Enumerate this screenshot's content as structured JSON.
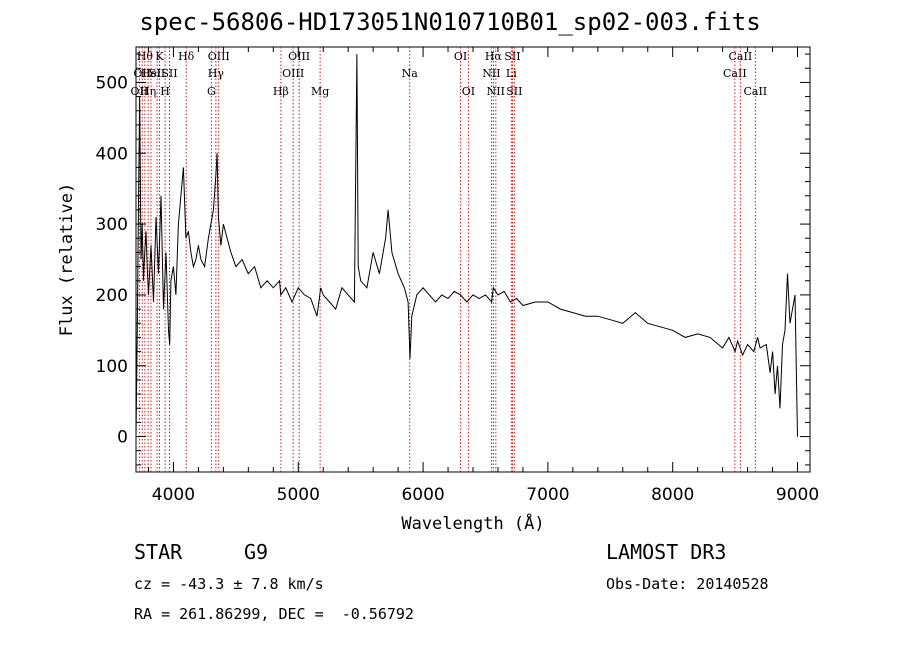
{
  "title": "spec-56806-HD173051N010710B01_sp02-003.fits",
  "info": {
    "class": "STAR",
    "subclass": "G9",
    "survey": "LAMOST DR3",
    "cz": "cz = -43.3 ± 7.8 km/s",
    "obs_date": "Obs-Date: 20140528",
    "radec": "RA = 261.86299, DEC =  -0.56792"
  },
  "chart_data": {
    "type": "line",
    "title": "spec-56806-HD173051N010710B01_sp02-003.fits",
    "xlabel": "Wavelength (Å)",
    "ylabel": "Flux (relative)",
    "xlim": [
      3700,
      9100
    ],
    "ylim": [
      -50,
      550
    ],
    "xticks": [
      4000,
      5000,
      6000,
      7000,
      8000,
      9000
    ],
    "yticks": [
      0,
      100,
      200,
      300,
      400,
      500
    ],
    "series": [
      {
        "name": "flux",
        "x": [
          3700,
          3710,
          3720,
          3730,
          3740,
          3750,
          3760,
          3770,
          3780,
          3790,
          3800,
          3820,
          3840,
          3860,
          3880,
          3900,
          3920,
          3940,
          3960,
          3970,
          3980,
          4000,
          4020,
          4040,
          4060,
          4080,
          4100,
          4120,
          4140,
          4160,
          4180,
          4200,
          4220,
          4250,
          4280,
          4300,
          4320,
          4340,
          4350,
          4360,
          4380,
          4400,
          4430,
          4460,
          4500,
          4550,
          4600,
          4650,
          4700,
          4750,
          4800,
          4850,
          4860,
          4900,
          4950,
          5000,
          5050,
          5100,
          5150,
          5180,
          5200,
          5250,
          5300,
          5350,
          5400,
          5450,
          5470,
          5480,
          5500,
          5550,
          5600,
          5650,
          5700,
          5720,
          5750,
          5800,
          5850,
          5880,
          5895,
          5910,
          5950,
          6000,
          6050,
          6100,
          6150,
          6200,
          6250,
          6300,
          6350,
          6400,
          6450,
          6500,
          6550,
          6563,
          6600,
          6650,
          6700,
          6750,
          6800,
          6900,
          7000,
          7100,
          7200,
          7300,
          7400,
          7500,
          7600,
          7700,
          7800,
          7900,
          8000,
          8100,
          8200,
          8300,
          8400,
          8450,
          8500,
          8520,
          8560,
          8600,
          8650,
          8680,
          8700,
          8750,
          8780,
          8800,
          8820,
          8840,
          8860,
          8880,
          8900,
          8920,
          8940,
          8960,
          8980,
          9000
        ],
        "y": [
          0,
          140,
          330,
          480,
          250,
          300,
          220,
          260,
          290,
          240,
          200,
          270,
          190,
          310,
          230,
          340,
          180,
          260,
          150,
          130,
          220,
          240,
          200,
          300,
          340,
          380,
          280,
          290,
          260,
          240,
          250,
          270,
          250,
          240,
          280,
          300,
          320,
          370,
          400,
          310,
          270,
          300,
          280,
          260,
          240,
          250,
          230,
          240,
          210,
          220,
          210,
          220,
          200,
          210,
          190,
          210,
          200,
          195,
          170,
          210,
          200,
          190,
          180,
          210,
          200,
          190,
          540,
          240,
          220,
          210,
          260,
          230,
          280,
          320,
          260,
          230,
          210,
          190,
          110,
          170,
          200,
          210,
          200,
          190,
          200,
          195,
          205,
          200,
          190,
          200,
          195,
          200,
          190,
          210,
          200,
          205,
          190,
          195,
          185,
          190,
          190,
          180,
          175,
          170,
          170,
          165,
          160,
          175,
          160,
          155,
          150,
          140,
          145,
          140,
          125,
          140,
          120,
          135,
          115,
          130,
          120,
          140,
          125,
          130,
          90,
          120,
          60,
          100,
          40,
          130,
          150,
          230,
          160,
          180,
          200,
          0
        ]
      }
    ],
    "lines": [
      {
        "wl": 3727,
        "labels": [
          "OII"
        ],
        "row": 3
      },
      {
        "wl": 3750,
        "labels": [
          "OII"
        ],
        "row": 2
      },
      {
        "wl": 3771,
        "labels": [
          "Hθ"
        ],
        "row": 1
      },
      {
        "wl": 3797,
        "labels": [
          "Hη"
        ],
        "row": 3
      },
      {
        "wl": 3820,
        "labels": [
          "HeI"
        ],
        "row": 2
      },
      {
        "wl": 3869,
        "labels": [
          "SII"
        ],
        "row": 2
      },
      {
        "wl": 3889,
        "labels": [
          "K"
        ],
        "row": 1
      },
      {
        "wl": 3933,
        "labels": [
          "H"
        ],
        "row": 3
      },
      {
        "wl": 3968,
        "labels": [
          "SII"
        ],
        "row": 2
      },
      {
        "wl": 4102,
        "labels": [
          "Hδ"
        ],
        "row": 1
      },
      {
        "wl": 4304,
        "labels": [
          "G"
        ],
        "row": 3
      },
      {
        "wl": 4340,
        "labels": [
          "Hγ"
        ],
        "row": 2
      },
      {
        "wl": 4363,
        "labels": [
          "OIII"
        ],
        "row": 1
      },
      {
        "wl": 4861,
        "labels": [
          "Hβ"
        ],
        "row": 3
      },
      {
        "wl": 4959,
        "labels": [
          "OIII"
        ],
        "row": 2
      },
      {
        "wl": 5007,
        "labels": [
          "OIII"
        ],
        "row": 1
      },
      {
        "wl": 5175,
        "labels": [
          "Mg"
        ],
        "row": 3
      },
      {
        "wl": 5893,
        "labels": [
          "Na"
        ],
        "row": 2
      },
      {
        "wl": 6300,
        "labels": [
          "OI"
        ],
        "row": 1
      },
      {
        "wl": 6363,
        "labels": [
          "OI"
        ],
        "row": 3
      },
      {
        "wl": 6548,
        "labels": [
          "NII"
        ],
        "row": 2
      },
      {
        "wl": 6563,
        "labels": [
          "Hα"
        ],
        "row": 1
      },
      {
        "wl": 6583,
        "labels": [
          "NII"
        ],
        "row": 3
      },
      {
        "wl": 6707,
        "labels": [
          "Li"
        ],
        "row": 2
      },
      {
        "wl": 6716,
        "labels": [
          "SII"
        ],
        "row": 1
      },
      {
        "wl": 6731,
        "labels": [
          "SII"
        ],
        "row": 3
      },
      {
        "wl": 8498,
        "labels": [
          "CaII"
        ],
        "row": 2
      },
      {
        "wl": 8542,
        "labels": [
          "CaII"
        ],
        "row": 1
      },
      {
        "wl": 8662,
        "labels": [
          "CaII"
        ],
        "row": 3
      }
    ]
  }
}
